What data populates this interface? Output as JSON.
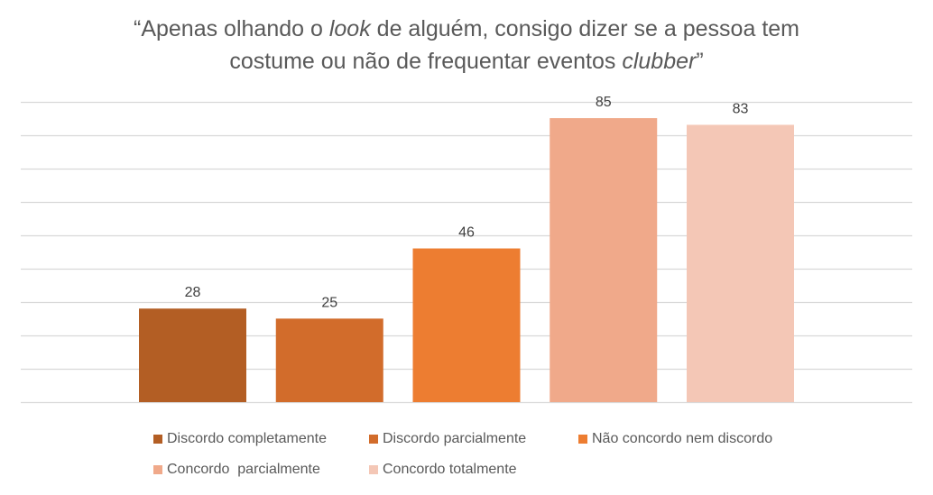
{
  "chart_data": {
    "type": "bar",
    "title_parts": [
      {
        "text": "“Apenas olhando o ",
        "italic": false
      },
      {
        "text": "look",
        "italic": true
      },
      {
        "text": " de alguém, consigo dizer se a pessoa tem",
        "italic": false
      },
      {
        "text": "\n",
        "italic": false
      },
      {
        "text": "costume ou não de frequentar eventos ",
        "italic": false
      },
      {
        "text": "clubber",
        "italic": true
      },
      {
        "text": "”",
        "italic": false
      }
    ],
    "title": "“Apenas olhando o look de alguém, consigo dizer se a pessoa tem costume ou não de frequentar eventos clubber”",
    "xlabel": "",
    "ylabel": "",
    "ylim": [
      0,
      90
    ],
    "ytick_step": 10,
    "grid": true,
    "legend_position": "bottom",
    "categories": [
      "Discordo completamente",
      "Discordo parcialmente",
      "Não concordo nem discordo",
      "Concordo  parcialmente",
      "Concordo totalmente"
    ],
    "series": [
      {
        "name": "Discordo completamente",
        "values": [
          28
        ],
        "color": "#B35E24"
      },
      {
        "name": "Discordo parcialmente",
        "values": [
          25
        ],
        "color": "#D26C2B"
      },
      {
        "name": "Não concordo nem discordo",
        "values": [
          46
        ],
        "color": "#ED7D31"
      },
      {
        "name": "Concordo  parcialmente",
        "values": [
          85
        ],
        "color": "#F0A98A"
      },
      {
        "name": "Concordo totalmente",
        "values": [
          83
        ],
        "color": "#F4C7B6"
      }
    ],
    "data_labels": [
      "28",
      "25",
      "46",
      "85",
      "83"
    ]
  },
  "colors": {
    "text": "#595959",
    "gridline": "#D9D9D9"
  }
}
